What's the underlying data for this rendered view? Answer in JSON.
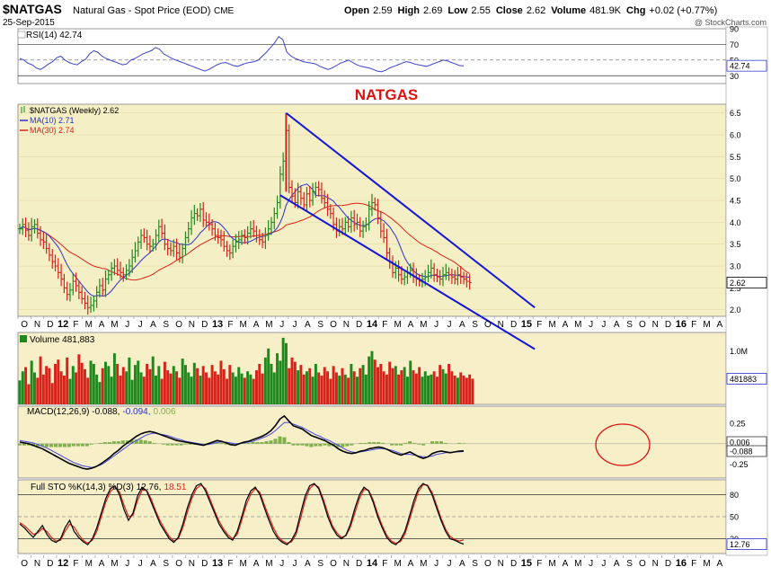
{
  "header": {
    "symbol": "$NATGAS",
    "description": "Natural Gas - Spot Price (EOD)",
    "exchange": "CME",
    "date": "25-Sep-2015",
    "watermark": "@ StockCharts.com",
    "ohlc": "Open 2.59  High 2.69  Low 2.55  Close 2.62  Volume 481.9K  Chg +0.02 (+0.77%)",
    "ohlc_open_label": "Open",
    "ohlc_open": "2.59",
    "ohlc_high_label": "High",
    "ohlc_high": "2.69",
    "ohlc_low_label": "Low",
    "ohlc_low": "2.55",
    "ohlc_close_label": "Close",
    "ohlc_close": "2.62",
    "ohlc_volume_label": "Volume",
    "ohlc_volume": "481.9K",
    "ohlc_chg_label": "Chg",
    "ohlc_chg": "+0.02 (+0.77%)"
  },
  "annotation_title": "NATGAS",
  "colors": {
    "panel_bg": "#f6efc8",
    "price_bg": "#f5efc5",
    "up": "#1e8a1e",
    "down": "#d8231a",
    "ma10": "#2b33cc",
    "ma30": "#d8231a",
    "trend": "#1515d8",
    "rsi": "#3a44c8",
    "macd": "#000000",
    "signal": "#4a4adc",
    "hist": "#7fb04a",
    "annotation_red": "#dd1111"
  },
  "axis": {
    "labels": [
      "O",
      "N",
      "D",
      "12",
      "F",
      "M",
      "A",
      "M",
      "J",
      "J",
      "A",
      "S",
      "O",
      "N",
      "D",
      "13",
      "F",
      "M",
      "A",
      "M",
      "J",
      "J",
      "A",
      "S",
      "O",
      "N",
      "D",
      "14",
      "F",
      "M",
      "A",
      "M",
      "J",
      "J",
      "A",
      "S",
      "O",
      "N",
      "D",
      "15",
      "F",
      "M",
      "A",
      "M",
      "J",
      "J",
      "A",
      "S",
      "O",
      "N",
      "D",
      "16",
      "F",
      "M",
      "A"
    ],
    "year_labels": [
      "12",
      "13",
      "14",
      "15",
      "16"
    ]
  },
  "chart_data": [
    {
      "type": "line",
      "name": "rsi",
      "title": "RSI(14) 42.74",
      "ylim": [
        20,
        90
      ],
      "levels": [
        70,
        30
      ],
      "ticks": [
        90,
        70,
        50,
        30
      ],
      "last_value_label": "42.74",
      "series": [
        {
          "name": "RSI(14)",
          "color": "#3a44c8",
          "values": [
            52,
            50,
            46,
            44,
            40,
            38,
            41,
            45,
            48,
            53,
            55,
            50,
            47,
            45,
            44,
            48,
            51,
            58,
            62,
            60,
            55,
            52,
            50,
            48,
            46,
            44,
            45,
            50,
            52,
            55,
            58,
            60,
            62,
            66,
            64,
            58,
            55,
            52,
            50,
            48,
            46,
            44,
            42,
            40,
            38,
            36,
            38,
            41,
            44,
            46,
            47,
            45,
            43,
            42,
            44,
            46,
            47,
            48,
            50,
            55,
            60,
            66,
            72,
            80,
            76,
            60,
            55,
            52,
            50,
            48,
            47,
            46,
            45,
            42,
            40,
            38,
            40,
            43,
            46,
            48,
            50,
            47,
            44,
            42,
            41,
            40,
            38,
            36,
            35,
            37,
            40,
            42,
            44,
            46,
            48,
            47,
            45,
            44,
            43,
            42,
            44,
            46,
            48,
            50,
            49,
            47,
            45,
            43,
            42.74
          ]
        }
      ]
    },
    {
      "type": "candlestick",
      "name": "price",
      "title": "$NATGAS (Weekly) 2.62",
      "ylim": [
        1.85,
        6.7
      ],
      "ticks": [
        6.5,
        6.0,
        5.5,
        5.0,
        4.5,
        4.0,
        3.5,
        3.0,
        2.5,
        2.0
      ],
      "last_value_label": "2.62",
      "legend": [
        {
          "label": "$NATGAS (Weekly) 2.62",
          "color": "#1e8a1e"
        },
        {
          "label": "MA(10) 2.71",
          "color": "#2b33cc"
        },
        {
          "label": "MA(30) 2.74",
          "color": "#d8231a"
        }
      ],
      "series": [
        {
          "name": "$NATGAS",
          "close": [
            3.85,
            3.95,
            3.82,
            3.7,
            3.9,
            3.95,
            3.75,
            3.6,
            3.55,
            3.4,
            3.25,
            3.1,
            3.0,
            2.85,
            2.7,
            2.5,
            2.35,
            2.45,
            2.65,
            2.55,
            2.4,
            2.25,
            2.15,
            2.05,
            2.1,
            2.2,
            2.4,
            2.55,
            2.45,
            2.7,
            2.8,
            2.95,
            3.0,
            2.9,
            2.85,
            2.8,
            2.9,
            3.0,
            3.2,
            3.35,
            3.55,
            3.7,
            3.65,
            3.5,
            3.45,
            3.5,
            3.7,
            3.9,
            3.75,
            3.5,
            3.4,
            3.35,
            3.45,
            3.3,
            3.2,
            3.4,
            3.65,
            3.85,
            4.1,
            4.2,
            4.15,
            4.3,
            4.05,
            4.0,
            3.95,
            3.85,
            3.7,
            3.65,
            3.6,
            3.45,
            3.35,
            3.3,
            3.45,
            3.55,
            3.6,
            3.7,
            3.65,
            3.75,
            3.85,
            3.8,
            3.7,
            3.6,
            3.55,
            3.7,
            3.85,
            4.0,
            4.2,
            4.45,
            5.1,
            5.4,
            6.1,
            4.8,
            4.6,
            4.45,
            4.7,
            4.55,
            4.4,
            4.65,
            4.5,
            4.7,
            4.8,
            4.75,
            4.55,
            4.45,
            4.3,
            4.2,
            3.95,
            3.8,
            3.9,
            3.85,
            4.0,
            3.9,
            4.1,
            3.95,
            4.0,
            3.8,
            3.9,
            3.95,
            4.3,
            4.45,
            4.4,
            4.1,
            3.8,
            3.65,
            3.3,
            3.1,
            2.85,
            2.95,
            2.8,
            2.7,
            2.75,
            2.85,
            2.9,
            2.75,
            2.7,
            2.65,
            2.7,
            2.75,
            2.85,
            2.95,
            2.8,
            2.75,
            2.7,
            2.8,
            2.85,
            2.8,
            2.75,
            2.7,
            2.8,
            2.75,
            2.7,
            2.65,
            2.62
          ]
        }
      ],
      "ma10": {
        "name": "MA(10)",
        "last": 2.71
      },
      "ma30": {
        "name": "MA(30)",
        "last": 2.74
      },
      "trendlines": [
        {
          "from": {
            "week": 90,
            "price": 6.5
          },
          "to": {
            "week": 174,
            "price": 2.05
          }
        },
        {
          "from": {
            "week": 88,
            "price": 4.62
          },
          "to": {
            "week": 174,
            "price": 1.1
          }
        }
      ]
    },
    {
      "type": "bar",
      "name": "volume",
      "title": "Volume 481,883",
      "ylim": [
        0,
        1350000
      ],
      "ticks_label": "1.0M",
      "tick_value": 1000000,
      "last_value_label": "481883",
      "values": [
        450000,
        620000,
        700000,
        380000,
        820000,
        600000,
        500000,
        900000,
        560000,
        720000,
        680000,
        400000,
        760000,
        840000,
        620000,
        540000,
        880000,
        480000,
        720000,
        600000,
        940000,
        780000,
        660000,
        500000,
        820000,
        760000,
        560000,
        420000,
        680000,
        800000,
        720000,
        520000,
        960000,
        760000,
        540000,
        700000,
        620000,
        880000,
        460000,
        740000,
        820000,
        600000,
        520000,
        760000,
        660000,
        900000,
        540000,
        720000,
        480000,
        800000,
        640000,
        580000,
        720000,
        620000,
        500000,
        860000,
        740000,
        600000,
        520000,
        780000,
        680000,
        540000,
        720000,
        600000,
        500000,
        740000,
        620000,
        560000,
        820000,
        660000,
        480000,
        740000,
        600000,
        520000,
        700000,
        580000,
        500000,
        620000,
        560000,
        480000,
        640000,
        760000,
        580000,
        880000,
        1050000,
        760000,
        600000,
        960000,
        820000,
        1250000,
        1150000,
        680000,
        880000,
        800000,
        640000,
        740000,
        560000,
        620000,
        680000,
        520000,
        760000,
        600000,
        540000,
        700000,
        620000,
        480000,
        720000,
        600000,
        540000,
        680000,
        560000,
        500000,
        760000,
        620000,
        520000,
        680000,
        740000,
        560000,
        900000,
        1000000,
        840000,
        700000,
        760000,
        620000,
        560000,
        800000,
        680000,
        720000,
        560000,
        640000,
        700000,
        520000,
        820000,
        640000,
        580000,
        700000,
        520000,
        620000,
        540000,
        560000,
        620000,
        520000,
        740000,
        660000,
        580000,
        760000,
        620000,
        540000,
        500000,
        600000,
        540000,
        500000,
        560000,
        481883
      ]
    },
    {
      "type": "line",
      "name": "macd",
      "title": "MACD(12,26,9) -0.088, -0.094, 0.006",
      "title_parts": [
        "MACD(12,26,9) -0.088,",
        "-0.094,",
        "0.006"
      ],
      "ylim": [
        -0.42,
        0.46
      ],
      "ticks": [
        0.25,
        -0.25
      ],
      "last_values": [
        "0.006",
        "-0.088"
      ],
      "series": [
        {
          "name": "MACD",
          "color": "#000000",
          "values": [
            0.02,
            0.01,
            0.0,
            -0.02,
            -0.04,
            -0.06,
            -0.09,
            -0.12,
            -0.15,
            -0.18,
            -0.21,
            -0.24,
            -0.26,
            -0.28,
            -0.3,
            -0.31,
            -0.3,
            -0.28,
            -0.25,
            -0.21,
            -0.17,
            -0.12,
            -0.08,
            -0.03,
            0.01,
            0.05,
            0.09,
            0.12,
            0.14,
            0.15,
            0.14,
            0.12,
            0.1,
            0.08,
            0.06,
            0.04,
            0.03,
            0.02,
            0.01,
            0.0,
            -0.01,
            -0.02,
            0.0,
            0.02,
            0.04,
            0.03,
            0.01,
            -0.01,
            -0.02,
            0.0,
            0.02,
            0.03,
            0.05,
            0.07,
            0.09,
            0.12,
            0.16,
            0.22,
            0.3,
            0.34,
            0.28,
            0.22,
            0.2,
            0.18,
            0.14,
            0.1,
            0.08,
            0.06,
            0.04,
            0.01,
            -0.02,
            -0.06,
            -0.09,
            -0.11,
            -0.12,
            -0.11,
            -0.09,
            -0.08,
            -0.06,
            -0.05,
            -0.04,
            -0.05,
            -0.07,
            -0.1,
            -0.12,
            -0.14,
            -0.12,
            -0.1,
            -0.13,
            -0.16,
            -0.18,
            -0.16,
            -0.12,
            -0.1,
            -0.09,
            -0.1,
            -0.11,
            -0.1,
            -0.09,
            -0.088
          ]
        },
        {
          "name": "Signal",
          "color": "#4a4adc",
          "values": [
            0.04,
            0.03,
            0.02,
            0.01,
            -0.01,
            -0.03,
            -0.05,
            -0.08,
            -0.11,
            -0.14,
            -0.17,
            -0.2,
            -0.23,
            -0.25,
            -0.27,
            -0.28,
            -0.29,
            -0.28,
            -0.26,
            -0.23,
            -0.19,
            -0.15,
            -0.11,
            -0.07,
            -0.03,
            0.01,
            0.04,
            0.07,
            0.1,
            0.12,
            0.13,
            0.12,
            0.11,
            0.1,
            0.08,
            0.06,
            0.05,
            0.03,
            0.02,
            0.01,
            0.0,
            -0.01,
            -0.01,
            0.0,
            0.02,
            0.02,
            0.02,
            0.01,
            0.0,
            0.0,
            0.01,
            0.02,
            0.03,
            0.05,
            0.07,
            0.09,
            0.12,
            0.16,
            0.21,
            0.26,
            0.26,
            0.24,
            0.22,
            0.2,
            0.17,
            0.14,
            0.11,
            0.09,
            0.06,
            0.04,
            0.01,
            -0.02,
            -0.05,
            -0.08,
            -0.1,
            -0.11,
            -0.1,
            -0.09,
            -0.08,
            -0.07,
            -0.06,
            -0.06,
            -0.07,
            -0.08,
            -0.1,
            -0.12,
            -0.13,
            -0.13,
            -0.14,
            -0.15,
            -0.16,
            -0.16,
            -0.15,
            -0.13,
            -0.12,
            -0.11,
            -0.11,
            -0.1,
            -0.1,
            -0.094
          ]
        }
      ]
    },
    {
      "type": "line",
      "name": "sto",
      "title": "Full STO %K(14,3) %D(3) 12.76, 18.51",
      "title_parts": [
        "Full STO %K(14,3) %D(3) 12.76,",
        "18.51"
      ],
      "ylim": [
        0,
        100
      ],
      "levels": [
        80,
        20
      ],
      "ticks": [
        80,
        50,
        20
      ],
      "last_value_label": "12.76",
      "series": [
        {
          "name": "%K",
          "color": "#000000",
          "values": [
            40,
            35,
            28,
            22,
            30,
            38,
            26,
            18,
            15,
            20,
            35,
            45,
            30,
            22,
            16,
            12,
            20,
            35,
            55,
            75,
            88,
            92,
            80,
            60,
            45,
            55,
            78,
            90,
            85,
            70,
            55,
            40,
            30,
            20,
            15,
            22,
            40,
            62,
            80,
            92,
            95,
            85,
            70,
            55,
            40,
            30,
            22,
            18,
            30,
            50,
            72,
            85,
            90,
            80,
            62,
            45,
            30,
            20,
            15,
            12,
            18,
            30,
            55,
            78,
            92,
            95,
            88,
            70,
            50,
            35,
            25,
            20,
            25,
            40,
            62,
            80,
            90,
            85,
            70,
            50,
            35,
            22,
            15,
            12,
            18,
            30,
            50,
            72,
            88,
            95,
            92,
            80,
            62,
            45,
            30,
            20,
            18,
            15,
            12.76
          ]
        },
        {
          "name": "%D",
          "color": "#d8231a",
          "values": [
            42,
            38,
            32,
            26,
            28,
            34,
            30,
            22,
            17,
            18,
            30,
            40,
            36,
            26,
            18,
            14,
            18,
            30,
            50,
            70,
            84,
            90,
            84,
            66,
            50,
            52,
            72,
            86,
            86,
            74,
            58,
            44,
            33,
            23,
            17,
            20,
            35,
            56,
            75,
            88,
            93,
            88,
            74,
            58,
            44,
            33,
            25,
            20,
            26,
            45,
            66,
            81,
            88,
            83,
            66,
            50,
            35,
            23,
            17,
            14,
            16,
            26,
            48,
            72,
            88,
            94,
            90,
            74,
            55,
            38,
            28,
            22,
            24,
            36,
            56,
            75,
            87,
            86,
            73,
            54,
            38,
            25,
            17,
            14,
            16,
            26,
            45,
            66,
            84,
            93,
            93,
            83,
            66,
            48,
            33,
            23,
            19,
            17,
            18.51
          ]
        }
      ]
    }
  ]
}
